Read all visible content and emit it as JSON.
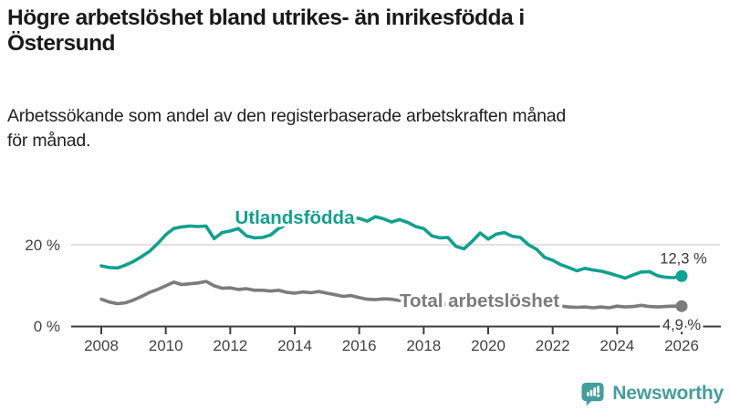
{
  "header": {
    "title_lines": [
      "Högre arbetslöshet bland utrikes- än inrikesfödda i",
      "Östersund"
    ],
    "subtitle_lines": [
      "Arbetssökande som andel av den registerbaserade arbetskraften månad",
      "för månad."
    ]
  },
  "footer": {
    "brand_name": "Newsworthy",
    "brand_color": "#459e9d",
    "logo_icon": "bar-chart-speech-bubble-icon"
  },
  "chart_data": {
    "type": "line",
    "title": "Högre arbetslöshet bland utrikes- än inrikesfödda i Östersund",
    "subtitle": "Arbetssökande som andel av den registerbaserade arbetskraften månad för månad.",
    "unit": "%",
    "x_start": 2008,
    "x_step_years": 0.25,
    "x_end": 2026,
    "ylim": [
      0,
      28
    ],
    "yticks": [
      {
        "value": 0,
        "label": "0 %"
      },
      {
        "value": 20,
        "label": "20 %"
      }
    ],
    "xtick_years": [
      2008,
      2010,
      2012,
      2014,
      2016,
      2018,
      2020,
      2022,
      2024,
      2026
    ],
    "grid": {
      "gridline_color": "#d8d8d8",
      "axis_color": "#3d3d3d",
      "tick_label_color": "#424242"
    },
    "end_label_color": "#383838",
    "series": [
      {
        "name": "Utlandsfödda",
        "color": "#12a08f",
        "end_label": "12,3 %",
        "end_value": 12.3,
        "values": [
          14.8,
          14.4,
          14.3,
          15.0,
          15.9,
          17.1,
          18.4,
          20.3,
          22.5,
          24.0,
          24.4,
          24.6,
          24.5,
          24.6,
          21.5,
          23.0,
          23.4,
          24.0,
          22.2,
          21.7,
          21.8,
          22.4,
          24.0,
          25.0,
          25.4,
          25.8,
          26.0,
          26.3,
          26.1,
          26.4,
          26.0,
          26.6,
          26.5,
          25.8,
          26.9,
          26.4,
          25.6,
          26.2,
          25.5,
          24.5,
          24.0,
          22.2,
          21.7,
          21.8,
          19.6,
          19.0,
          20.8,
          22.9,
          21.4,
          22.6,
          23.0,
          22.1,
          21.8,
          20.0,
          18.9,
          16.9,
          16.2,
          15.1,
          14.4,
          13.6,
          14.2,
          13.8,
          13.5,
          13.0,
          12.4,
          11.8,
          12.6,
          13.3,
          13.4,
          12.4,
          12.0,
          11.9,
          12.3
        ]
      },
      {
        "name": "Total arbetslöshet",
        "color": "#7b7b80",
        "end_label": "4,9 %",
        "end_value": 4.9,
        "values": [
          6.6,
          5.9,
          5.5,
          5.7,
          6.4,
          7.3,
          8.3,
          9.0,
          9.9,
          10.8,
          10.2,
          10.4,
          10.6,
          11.0,
          9.9,
          9.3,
          9.4,
          9.0,
          9.2,
          8.8,
          8.8,
          8.6,
          8.8,
          8.3,
          8.1,
          8.4,
          8.2,
          8.5,
          8.1,
          7.7,
          7.3,
          7.5,
          7.0,
          6.6,
          6.5,
          6.7,
          6.6,
          6.3,
          6.1,
          6.0,
          5.8,
          5.6,
          5.5,
          5.4,
          5.4,
          5.3,
          5.5,
          5.7,
          6.1,
          7.0,
          7.1,
          6.7,
          6.3,
          6.0,
          5.7,
          5.4,
          5.1,
          4.9,
          4.7,
          4.6,
          4.7,
          4.5,
          4.7,
          4.5,
          4.9,
          4.7,
          4.8,
          5.1,
          4.8,
          4.7,
          4.8,
          4.9,
          4.9
        ]
      }
    ]
  }
}
